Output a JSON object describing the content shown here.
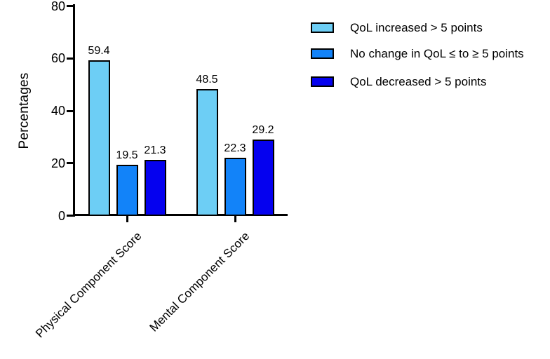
{
  "chart_data": {
    "type": "bar",
    "title": "",
    "ylabel": "Percentages",
    "xlabel": "",
    "categories": [
      "Physical Component Score",
      "Mental Component Score"
    ],
    "series": [
      {
        "name": "QoL increased > 5 points",
        "color": "#6DCEF5",
        "values": [
          59.4,
          48.5
        ]
      },
      {
        "name": "No change in QoL ≤ to ≥ 5 points",
        "color": "#1283F9",
        "values": [
          19.5,
          22.3
        ]
      },
      {
        "name": "QoL decreased > 5 points",
        "color": "#0501EF",
        "values": [
          21.3,
          29.2
        ]
      }
    ],
    "bar_value_labels": [
      [
        "59.4",
        "48.5"
      ],
      [
        "19.5",
        "22.3"
      ],
      [
        "21.3",
        "29.2"
      ]
    ],
    "ylim": [
      0,
      80
    ],
    "yticks": [
      0,
      20,
      40,
      60,
      80
    ],
    "grid": false,
    "legend_position": "top-right",
    "axis_color": "#000000",
    "background_color": "#ffffff"
  }
}
